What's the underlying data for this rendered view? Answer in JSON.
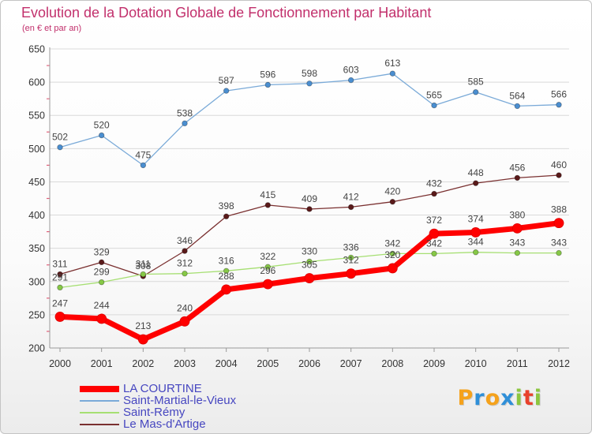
{
  "chart_data": {
    "type": "line",
    "title": "Evolution de la Dotation Globale de Fonctionnement par Habitant",
    "subtitle": "(en € et par an)",
    "x": [
      2000,
      2001,
      2002,
      2003,
      2004,
      2005,
      2006,
      2007,
      2008,
      2009,
      2010,
      2011,
      2012
    ],
    "ylim": [
      200,
      650
    ],
    "yticks": [
      200,
      250,
      300,
      350,
      400,
      450,
      500,
      550,
      600,
      650
    ],
    "grid": true,
    "legend": "bottom-left",
    "series": [
      {
        "name": "LA COURTINE",
        "color": "#ff0000",
        "marker_color": "#ff0000",
        "values": [
          247,
          244,
          213,
          240,
          288,
          296,
          305,
          312,
          320,
          372,
          374,
          380,
          388
        ]
      },
      {
        "name": "Saint-Martial-le-Vieux",
        "color": "#7aaad8",
        "marker_color": "#4a8ed0",
        "values": [
          502,
          520,
          475,
          538,
          587,
          596,
          598,
          603,
          613,
          565,
          585,
          564,
          566
        ]
      },
      {
        "name": "Saint-Rémy",
        "color": "#a6df72",
        "marker_color": "#86c846",
        "values": [
          291,
          299,
          311,
          312,
          316,
          322,
          330,
          336,
          342,
          342,
          344,
          343,
          343
        ]
      },
      {
        "name": "Le Mas-d'Artige",
        "color": "#7a3030",
        "marker_color": "#5a1a1a",
        "values": [
          311,
          329,
          308,
          346,
          398,
          415,
          409,
          412,
          420,
          432,
          448,
          456,
          460
        ]
      }
    ]
  },
  "colors": {
    "title": "#c2306c",
    "axis_text": "#333333",
    "data_label": "#444444",
    "grid": "#d9d9d9",
    "axis": "#9a9a9a",
    "minor_tick": "#e0607a",
    "legend_text": "#4646c0"
  },
  "logo": {
    "text": "Proxiti",
    "letter_colors": [
      "#f5a21c",
      "#2f8fd8",
      "#f5a21c",
      "#2f8fd8",
      "#8cc63f",
      "#e8412c",
      "#8cc63f"
    ]
  }
}
